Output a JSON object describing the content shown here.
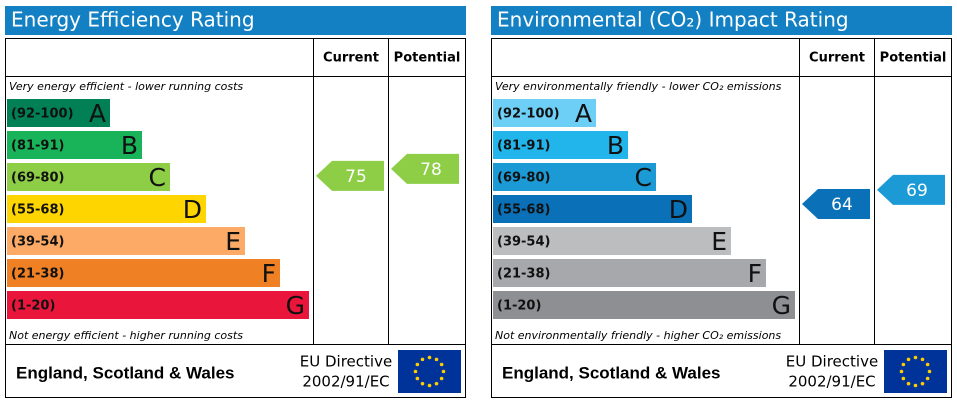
{
  "panels": [
    {
      "title": "Energy Efficiency Rating",
      "columns": [
        "Current",
        "Potential"
      ],
      "top_note": "Very energy efficient - lower running costs",
      "bottom_note": "Not energy efficient - higher running costs",
      "bands": [
        {
          "range": "(92-100)",
          "letter": "A",
          "color": "#008054"
        },
        {
          "range": "(81-91)",
          "letter": "B",
          "color": "#19b459"
        },
        {
          "range": "(69-80)",
          "letter": "C",
          "color": "#8dce46"
        },
        {
          "range": "(55-68)",
          "letter": "D",
          "color": "#ffd500"
        },
        {
          "range": "(39-54)",
          "letter": "E",
          "color": "#fcaa65"
        },
        {
          "range": "(21-38)",
          "letter": "F",
          "color": "#ef8023"
        },
        {
          "range": "(1-20)",
          "letter": "G",
          "color": "#e9153b"
        }
      ],
      "current": 75,
      "potential": 78,
      "footer": "England, Scotland & Wales",
      "directive": [
        "EU Directive",
        "2002/91/EC"
      ]
    },
    {
      "title": "Environmental (CO₂) Impact Rating",
      "columns": [
        "Current",
        "Potential"
      ],
      "top_note": "Very environmentally friendly - lower CO₂ emissions",
      "bottom_note": "Not environmentally friendly - higher CO₂ emissions",
      "bands": [
        {
          "range": "(92-100)",
          "letter": "A",
          "color": "#6dcff6"
        },
        {
          "range": "(81-91)",
          "letter": "B",
          "color": "#22b5eb"
        },
        {
          "range": "(69-80)",
          "letter": "C",
          "color": "#1c9ad6"
        },
        {
          "range": "(55-68)",
          "letter": "D",
          "color": "#0a71b8"
        },
        {
          "range": "(39-54)",
          "letter": "E",
          "color": "#bbbdbf"
        },
        {
          "range": "(21-38)",
          "letter": "F",
          "color": "#a6a8ab"
        },
        {
          "range": "(1-20)",
          "letter": "G",
          "color": "#8d8f92"
        }
      ],
      "current": 64,
      "potential": 69,
      "footer": "England, Scotland & Wales",
      "directive": [
        "EU Directive",
        "2002/91/EC"
      ]
    }
  ]
}
